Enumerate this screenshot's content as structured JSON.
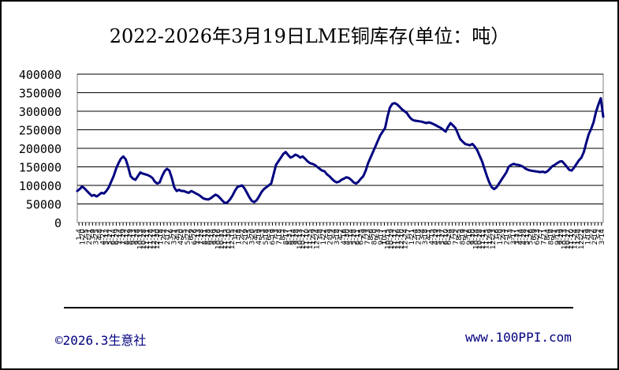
{
  "chart_data": {
    "type": "line",
    "title": "2022-2026年3月19日LME铜库存(单位：吨）",
    "ylim": [
      0,
      400000
    ],
    "yticks": [
      0,
      50000,
      100000,
      150000,
      200000,
      250000,
      300000,
      350000,
      400000
    ],
    "grid": "horizontal",
    "line_color": "#000080",
    "xtick_labels": [
      "1-4",
      "1-20",
      "2-5",
      "2-21",
      "3-9",
      "3-25",
      "4-8",
      "4-27",
      "5-12",
      "5-27",
      "6-14",
      "6-29",
      "7-14",
      "7-29",
      "8-12",
      "8-29",
      "9-13",
      "9-28",
      "10-13",
      "10-28",
      "11-11",
      "11-28",
      "12-13",
      "12-30",
      "1-18",
      "2-2",
      "2-17",
      "3-6",
      "3-21",
      "4-5",
      "4-20",
      "5-5",
      "5-22",
      "6-9",
      "6-26",
      "7-13",
      "7-28",
      "8-11",
      "8-28",
      "9-14",
      "9-29",
      "10-16",
      "10-31",
      "11-15",
      "11-30",
      "12-15",
      "1-2",
      "1-18",
      "2-2",
      "2-19",
      "3-5",
      "3-20",
      "4-5",
      "4-19",
      "5-3",
      "5-18",
      "6-3",
      "6-19",
      "7-3",
      "7-18",
      "8-2",
      "8-17",
      "8-31",
      "9-14",
      "9-28",
      "10-13",
      "10-27",
      "11-10",
      "11-25",
      "12-9",
      "12-24",
      "1-8",
      "1-22",
      "2-5",
      "2-19",
      "3-4",
      "3-18",
      "4-2",
      "4-16",
      "4-30",
      "5-14",
      "5-28",
      "6-11",
      "6-25",
      "7-9",
      "7-23",
      "8-6",
      "8-20",
      "9-3",
      "9-17",
      "10-1",
      "10-15",
      "10-29",
      "11-12",
      "11-26",
      "12-10",
      "12-24",
      "1-7",
      "1-21",
      "2-4",
      "2-18",
      "3-4",
      "3-18",
      "4-1",
      "4-15",
      "4-29",
      "5-13",
      "5-27",
      "6-10",
      "6-24",
      "7-8",
      "7-22",
      "8-5",
      "8-19",
      "9-2",
      "9-16",
      "9-30",
      "10-14",
      "10-28",
      "11-11",
      "11-25",
      "12-9",
      "12-23",
      "1-6",
      "1-20",
      "2-3",
      "2-17",
      "3-3",
      "3-17",
      "3-31",
      "4-14",
      "4-28",
      "5-12",
      "5-26",
      "6-9",
      "6-23",
      "7-7",
      "7-21",
      "8-4",
      "8-18",
      "9-1",
      "9-15",
      "9-29",
      "10-13",
      "10-27",
      "11-10",
      "11-24",
      "12-8",
      "12-22",
      "1-5",
      "1-19",
      "2-2",
      "2-16",
      "3-2",
      "3-14"
    ],
    "series": [
      {
        "values": [
          85000,
          90000,
          97000,
          92000,
          85000,
          78000,
          72000,
          74000,
          70000,
          75000,
          80000,
          78000,
          85000,
          95000,
          110000,
          125000,
          145000,
          160000,
          172000,
          178000,
          170000,
          150000,
          125000,
          118000,
          115000,
          125000,
          135000,
          132000,
          130000,
          128000,
          125000,
          120000,
          110000,
          105000,
          108000,
          125000,
          138000,
          145000,
          140000,
          120000,
          95000,
          85000,
          88000,
          85000,
          85000,
          82000,
          80000,
          85000,
          82000,
          78000,
          75000,
          70000,
          65000,
          63000,
          62000,
          65000,
          70000,
          75000,
          72000,
          65000,
          58000,
          52000,
          55000,
          62000,
          72000,
          85000,
          95000,
          98000,
          100000,
          92000,
          80000,
          68000,
          58000,
          55000,
          60000,
          70000,
          82000,
          90000,
          95000,
          100000,
          105000,
          130000,
          155000,
          165000,
          175000,
          185000,
          190000,
          182000,
          175000,
          178000,
          183000,
          180000,
          175000,
          178000,
          172000,
          165000,
          160000,
          158000,
          155000,
          150000,
          145000,
          140000,
          138000,
          130000,
          125000,
          118000,
          112000,
          108000,
          110000,
          115000,
          118000,
          122000,
          120000,
          115000,
          108000,
          105000,
          110000,
          118000,
          125000,
          140000,
          160000,
          175000,
          190000,
          205000,
          220000,
          235000,
          245000,
          255000,
          285000,
          310000,
          320000,
          322000,
          318000,
          312000,
          305000,
          300000,
          295000,
          285000,
          278000,
          275000,
          274000,
          273000,
          272000,
          270000,
          268000,
          270000,
          268000,
          265000,
          262000,
          258000,
          255000,
          250000,
          245000,
          258000,
          268000,
          262000,
          255000,
          240000,
          225000,
          218000,
          212000,
          210000,
          208000,
          212000,
          205000,
          195000,
          180000,
          165000,
          145000,
          125000,
          108000,
          95000,
          90000,
          95000,
          105000,
          115000,
          125000,
          135000,
          150000,
          155000,
          158000,
          156000,
          155000,
          153000,
          150000,
          145000,
          142000,
          140000,
          139000,
          138000,
          137000,
          136000,
          137000,
          135000,
          138000,
          145000,
          152000,
          155000,
          160000,
          164000,
          165000,
          158000,
          150000,
          142000,
          140000,
          148000,
          158000,
          168000,
          175000,
          190000,
          215000,
          238000,
          252000,
          270000,
          298000,
          318000,
          335000,
          285000
        ]
      }
    ]
  },
  "footer": {
    "copyright": "©2026.3生意社",
    "website": "www.100PPI.com"
  }
}
